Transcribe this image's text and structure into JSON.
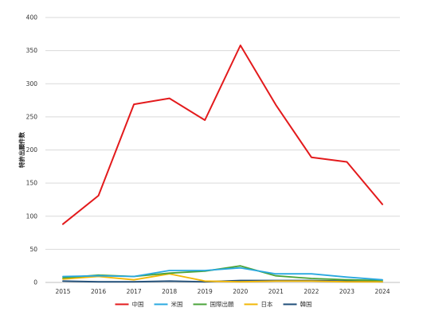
{
  "chart_data": {
    "type": "line",
    "title": "",
    "xlabel": "",
    "ylabel": "特許出願件数",
    "x": [
      "2015",
      "2016",
      "2017",
      "2018",
      "2019",
      "2020",
      "2021",
      "2022",
      "2023",
      "2024"
    ],
    "ylim": [
      0,
      400
    ],
    "yticks": [
      0,
      50,
      100,
      150,
      200,
      250,
      300,
      350,
      400
    ],
    "grid": "horizontal",
    "legend_position": "bottom",
    "series": [
      {
        "name": "中国",
        "color": "#e31a1c",
        "values": [
          88,
          131,
          269,
          278,
          245,
          358,
          268,
          189,
          182,
          118
        ]
      },
      {
        "name": "米国",
        "color": "#29a8e0",
        "values": [
          9,
          10,
          9,
          18,
          18,
          22,
          13,
          13,
          8,
          4
        ]
      },
      {
        "name": "国際出願",
        "color": "#4aa339",
        "values": [
          7,
          11,
          9,
          14,
          17,
          25,
          10,
          6,
          4,
          3
        ]
      },
      {
        "name": "日本",
        "color": "#f2b705",
        "values": [
          5,
          9,
          4,
          13,
          2,
          1,
          2,
          2,
          1,
          1
        ]
      },
      {
        "name": "韓国",
        "color": "#1f4e79",
        "values": [
          2,
          1,
          1,
          2,
          1,
          3,
          3,
          3,
          2,
          1
        ]
      }
    ]
  }
}
